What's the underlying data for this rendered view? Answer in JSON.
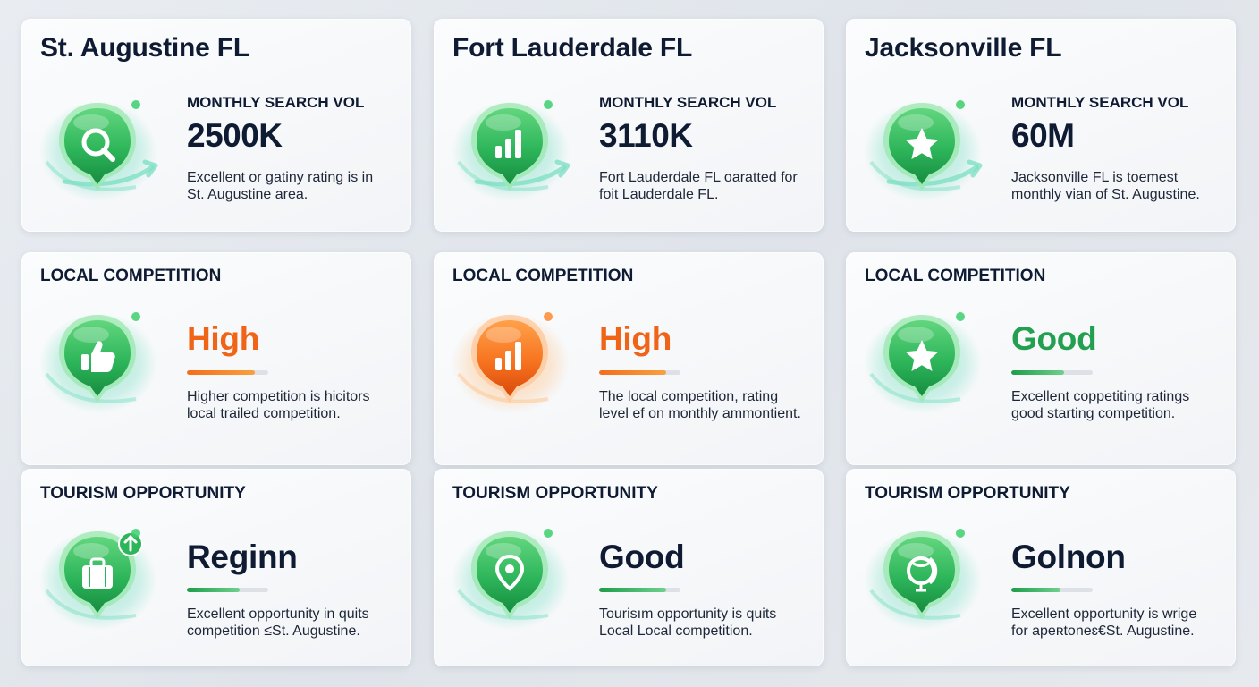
{
  "colors": {
    "accent_green": "#23a04f",
    "accent_orange": "#f06418",
    "text_dark": "#0f1b33",
    "card_bg": "#f6f7f9"
  },
  "cities": [
    {
      "title": "St. Augustine FL",
      "search": {
        "label": "MONTHLY SEARCH VOL",
        "value": "2500K",
        "icon": "search-icon",
        "desc_line1": "Excellent or gatiny rating is in",
        "desc_line2": "St. Augustine area."
      },
      "competition": {
        "label": "LOCAL COMPETITION",
        "rating": "High",
        "rating_color": "orange",
        "level": 0.83,
        "icon": "thumbs-up-icon",
        "desc_line1": "Higher competition is hicitors",
        "desc_line2": "local trailed competition."
      },
      "tourism": {
        "label": "TOURISM OPPORTUNITY",
        "rating": "Reginn",
        "rating_color": "navy",
        "level": 0.65,
        "icon": "suitcase-icon",
        "desc_line1": "Excellent opportunity in quits",
        "desc_line2": "competition ≤St. Augustine."
      }
    },
    {
      "title": "Fort Lauderdale FL",
      "search": {
        "label": "MONTHLY SEARCH VOL",
        "value": "3110K",
        "icon": "bar-chart-icon",
        "desc_line1": "Fort Lauderdale FL oaratted for",
        "desc_line2": "foit Lauderdale FL."
      },
      "competition": {
        "label": "LOCAL COMPETITION",
        "rating": "High",
        "rating_color": "orange",
        "level": 0.82,
        "icon": "bar-chart-icon",
        "desc_line1": "The local competition, rating",
        "desc_line2": "level ef on monthly ammontient."
      },
      "tourism": {
        "label": "TOURISM OPPORTUNITY",
        "rating": "Good",
        "rating_color": "navy",
        "level": 0.82,
        "icon": "map-pin-icon",
        "desc_line1": "Tourisım opportunity is quits",
        "desc_line2": "Local Local competition."
      }
    },
    {
      "title": "Jacksonville FL",
      "search": {
        "label": "MONTHLY SEARCH VOL",
        "value": "60M",
        "icon": "star-icon",
        "desc_line1": "Jacksonville FL is toemest",
        "desc_line2": "monthly vian of St. Augustine."
      },
      "competition": {
        "label": "LOCAL COMPETITION",
        "rating": "Good",
        "rating_color": "green",
        "level": 0.65,
        "icon": "star-icon",
        "desc_line1": "Excellent coppetiting ratings",
        "desc_line2": "good starting competition."
      },
      "tourism": {
        "label": "TOURISM OPPORTUNITY",
        "rating": "Golnon",
        "rating_color": "navy",
        "level": 0.6,
        "icon": "globe-icon",
        "desc_line1": "Excellent opportunity is wrige",
        "desc_line2": "for apeʀtoneɛ€St. Augustine."
      }
    }
  ]
}
